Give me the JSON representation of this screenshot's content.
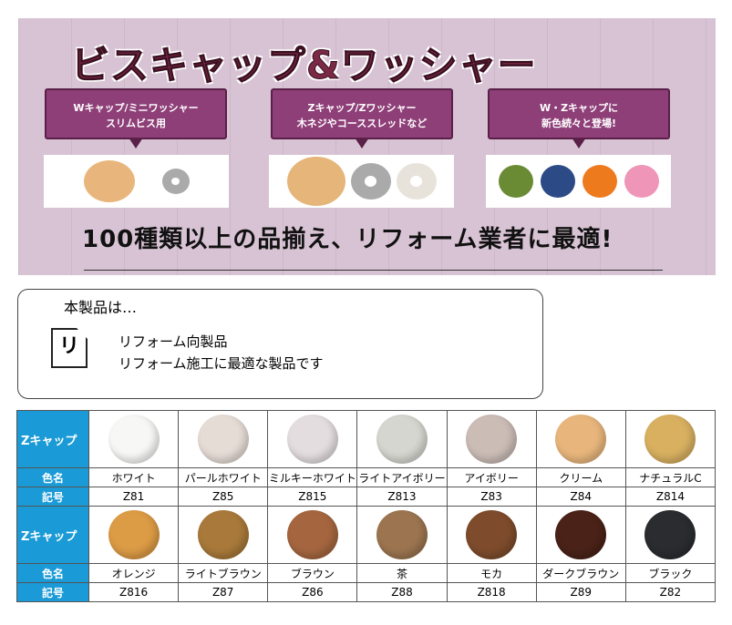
{
  "banner": {
    "title": "ビスキャップ&ワッシャー",
    "bubbles": [
      {
        "line1": "Wキャップ/ミニワッシャー",
        "line2": "スリムビス用"
      },
      {
        "line1": "Zキャップ/Zワッシャー",
        "line2": "木ネジやコーススレッドなど"
      },
      {
        "line1": "W・Zキャップに",
        "line2": "新色続々と登場!"
      }
    ],
    "new_colors": [
      "#6b8a34",
      "#2c4a86",
      "#ee7a1e",
      "#ef95b8"
    ],
    "tagline": "100種類以上の品揃え、リフォーム業者に最適!"
  },
  "info": {
    "heading": "本製品は…",
    "icon_label": "リ",
    "features": [
      "リフォーム向製品",
      "リフォーム施工に最適な製品です"
    ]
  },
  "table": {
    "row_header_image": "Zキャップ",
    "row_header_name": "色名",
    "row_header_code": "記号",
    "groups": [
      {
        "items": [
          {
            "name": "ホワイト",
            "code": "Z81",
            "color": "#f7f7f5"
          },
          {
            "name": "パールホワイト",
            "code": "Z85",
            "color": "#e6dcd6"
          },
          {
            "name": "ミルキーホワイト",
            "code": "Z815",
            "color": "#e4dde0"
          },
          {
            "name": "ライトアイボリー",
            "code": "Z813",
            "color": "#d6d6d0"
          },
          {
            "name": "アイボリー",
            "code": "Z83",
            "color": "#cbbcb6"
          },
          {
            "name": "クリーム",
            "code": "Z84",
            "color": "#e8b67c"
          },
          {
            "name": "ナチュラルC",
            "code": "Z814",
            "color": "#d8b060"
          }
        ]
      },
      {
        "items": [
          {
            "name": "オレンジ",
            "code": "Z816",
            "color": "#dc9b45"
          },
          {
            "name": "ライトブラウン",
            "code": "Z87",
            "color": "#a8793a"
          },
          {
            "name": "ブラウン",
            "code": "Z86",
            "color": "#a5663f"
          },
          {
            "name": "茶",
            "code": "Z88",
            "color": "#9c7550"
          },
          {
            "name": "モカ",
            "code": "Z818",
            "color": "#7e4c2c"
          },
          {
            "name": "ダークブラウン",
            "code": "Z89",
            "color": "#4a2218"
          },
          {
            "name": "ブラック",
            "code": "Z82",
            "color": "#2a2c30"
          }
        ]
      }
    ]
  }
}
